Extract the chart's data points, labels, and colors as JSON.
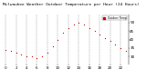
{
  "title": "Milwaukee Weather Outdoor Temperature per Hour (24 Hours)",
  "hours": [
    0,
    1,
    2,
    3,
    4,
    5,
    6,
    7,
    8,
    9,
    10,
    11,
    12,
    13,
    14,
    15,
    16,
    17,
    18,
    19,
    20,
    21,
    22,
    23
  ],
  "temps": [
    34,
    33,
    32,
    31,
    30,
    30,
    29,
    30,
    32,
    36,
    40,
    44,
    47,
    49,
    50,
    49,
    47,
    45,
    43,
    41,
    39,
    37,
    35,
    33
  ],
  "dot_color": "#cc0000",
  "bg_color": "#ffffff",
  "plot_bg": "#ffffff",
  "grid_color": "#888888",
  "ylim_min": 25,
  "ylim_max": 55,
  "legend_box_color": "#cc0000",
  "legend_text": "Outdoor Temp",
  "tick_label_size": 3.0,
  "title_fontsize": 3.2,
  "x_ticks": [
    0,
    2,
    4,
    6,
    8,
    10,
    12,
    14,
    16,
    18,
    20,
    22
  ],
  "y_ticks": [
    30,
    35,
    40,
    45,
    50
  ]
}
